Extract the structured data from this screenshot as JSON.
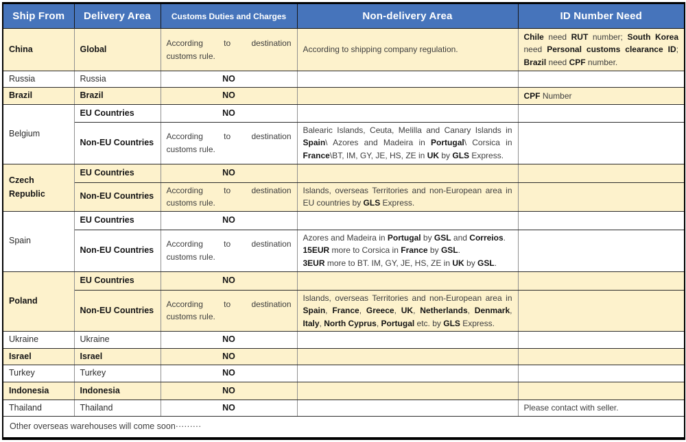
{
  "colors": {
    "header_bg": "#4674bb",
    "header_text": "#ffffff",
    "row_cream": "#fdf2cc",
    "row_white": "#ffffff",
    "border_dark": "#2a2a2a",
    "border_gray": "#8f8f8f",
    "outer_border": "#000000"
  },
  "header": {
    "columns": [
      {
        "label": "Ship From"
      },
      {
        "label": "Delivery Area"
      },
      {
        "label": "Customs Duties and Charges"
      },
      {
        "label": "Non-delivery Area"
      },
      {
        "label": "ID Number Need"
      }
    ]
  },
  "common": {
    "no_label": "NO",
    "according_line1": "According to destination",
    "according_line2": "customs rule."
  },
  "rows": [
    {
      "ship_from": "China",
      "delivery": "Global",
      "customs": "according",
      "non_delivery": [
        {
          "t": "According to shipping company regulation."
        }
      ],
      "id_need": [
        {
          "t": "Chile",
          "b": true
        },
        {
          "t": " need "
        },
        {
          "t": "RUT",
          "b": true
        },
        {
          "t": " number; "
        },
        {
          "t": "South Korea",
          "b": true
        },
        {
          "t": " need "
        },
        {
          "t": "Personal customs clearance ID",
          "b": true
        },
        {
          "t": "; "
        },
        {
          "t": "Brazil",
          "b": true
        },
        {
          "t": " need "
        },
        {
          "t": "CPF",
          "b": true
        },
        {
          "t": " number."
        }
      ]
    },
    {
      "ship_from": "Russia",
      "delivery": "Russia",
      "customs": "no",
      "non_delivery": [],
      "id_need": []
    },
    {
      "ship_from": "Brazil",
      "delivery": "Brazil",
      "customs": "no",
      "non_delivery": [],
      "id_need": [
        {
          "t": "CPF",
          "b": true
        },
        {
          "t": " Number"
        }
      ]
    },
    {
      "ship_from": "Belgium",
      "delivery": "EU Countries",
      "customs": "no",
      "non_delivery": [],
      "id_need": []
    },
    {
      "delivery": "Non-EU Countries",
      "customs": "according",
      "non_delivery": [
        {
          "t": "Balearic Islands, Ceuta, Melilla and Canary Islands in "
        },
        {
          "t": "Spain",
          "b": true
        },
        {
          "t": "\\ Azores and Madeira in "
        },
        {
          "t": "Portugal",
          "b": true
        },
        {
          "t": "\\ Corsica in "
        },
        {
          "t": "France",
          "b": true
        },
        {
          "t": "\\BT, IM, GY, JE, HS, ZE in "
        },
        {
          "t": "UK",
          "b": true
        },
        {
          "t": " by "
        },
        {
          "t": "GLS",
          "b": true
        },
        {
          "t": " Express."
        }
      ],
      "id_need": []
    },
    {
      "ship_from": "Czech Republic",
      "delivery": "EU Countries",
      "customs": "no",
      "non_delivery": [],
      "id_need": []
    },
    {
      "delivery": "Non-EU Countries",
      "customs": "according",
      "non_delivery": [
        {
          "t": "Islands, overseas Territories and non-European area in EU countries by "
        },
        {
          "t": "GLS",
          "b": true
        },
        {
          "t": " Express."
        }
      ],
      "id_need": []
    },
    {
      "ship_from": "Spain",
      "delivery": "EU Countries",
      "customs": "no",
      "non_delivery": [],
      "id_need": []
    },
    {
      "delivery": "Non-EU Countries",
      "customs": "according",
      "non_delivery": [
        {
          "t": "Azores and Madeira in "
        },
        {
          "t": "Portugal",
          "b": true
        },
        {
          "t": " by "
        },
        {
          "t": "GSL",
          "b": true
        },
        {
          "t": " and "
        },
        {
          "t": "Correios",
          "b": true
        },
        {
          "t": "."
        },
        {
          "br": true
        },
        {
          "t": "15EUR",
          "b": true
        },
        {
          "t": " more to Corsica in "
        },
        {
          "t": "France",
          "b": true
        },
        {
          "t": " by "
        },
        {
          "t": "GSL",
          "b": true
        },
        {
          "t": "."
        },
        {
          "br": true
        },
        {
          "t": "3EUR",
          "b": true
        },
        {
          "t": " more to BT. IM, GY, JE, HS, ZE in "
        },
        {
          "t": "UK",
          "b": true
        },
        {
          "t": " by "
        },
        {
          "t": "GSL",
          "b": true
        },
        {
          "t": "."
        }
      ],
      "id_need": []
    },
    {
      "ship_from": "Poland",
      "delivery": "EU Countries",
      "customs": "no",
      "non_delivery": [],
      "id_need": []
    },
    {
      "delivery": "Non-EU Countries",
      "customs": "according",
      "non_delivery": [
        {
          "t": "Islands, overseas Territories and non-European area in "
        },
        {
          "t": "Spain",
          "b": true
        },
        {
          "t": ", "
        },
        {
          "t": "France",
          "b": true
        },
        {
          "t": ", "
        },
        {
          "t": "Greece",
          "b": true
        },
        {
          "t": ", "
        },
        {
          "t": "UK",
          "b": true
        },
        {
          "t": ", "
        },
        {
          "t": "Netherlands",
          "b": true
        },
        {
          "t": ", "
        },
        {
          "t": "Denmark",
          "b": true
        },
        {
          "t": ", "
        },
        {
          "t": "Italy",
          "b": true
        },
        {
          "t": ", "
        },
        {
          "t": "North Cyprus",
          "b": true
        },
        {
          "t": ", "
        },
        {
          "t": "Portugal",
          "b": true
        },
        {
          "t": " etc. by "
        },
        {
          "t": "GLS",
          "b": true
        },
        {
          "t": " Express."
        }
      ],
      "id_need": []
    },
    {
      "ship_from": "Ukraine",
      "delivery": "Ukraine",
      "customs": "no",
      "non_delivery": [],
      "id_need": []
    },
    {
      "ship_from": "Israel",
      "delivery": "Israel",
      "customs": "no",
      "non_delivery": [],
      "id_need": []
    },
    {
      "ship_from": "Turkey",
      "delivery": "Turkey",
      "customs": "no",
      "non_delivery": [],
      "id_need": []
    },
    {
      "ship_from": "Indonesia",
      "delivery": "Indonesia",
      "customs": "no",
      "non_delivery": [],
      "id_need": []
    },
    {
      "ship_from": "Thailand",
      "delivery": "Thailand",
      "customs": "no",
      "non_delivery": [],
      "id_need": [
        {
          "t": "Please contact with seller."
        }
      ]
    }
  ],
  "footer": {
    "text": "Other overseas warehouses will come soon·········"
  }
}
